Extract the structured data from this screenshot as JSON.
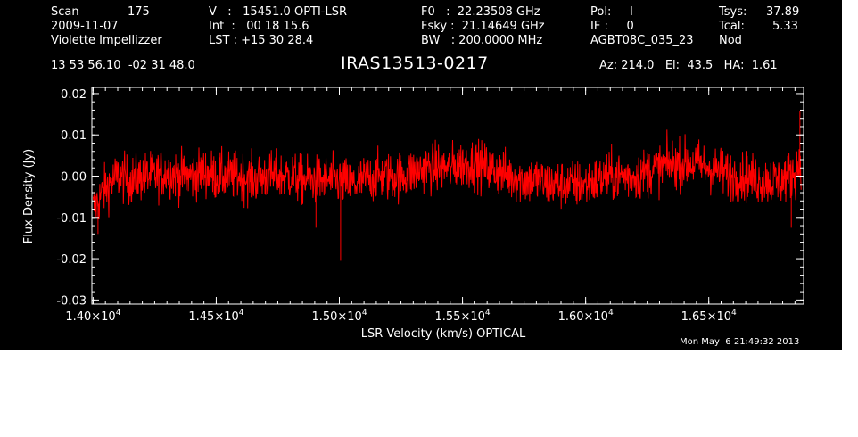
{
  "header": {
    "scan_label": "Scan",
    "scan_number": "175",
    "date": "2009-11-07",
    "observer": "Violette Impellizzer",
    "ra_dec": "13 53 56.10  -02 31 48.0",
    "v_line": "V   :   15451.0 OPTI-LSR",
    "int_line": "Int  :   00 18 15.6",
    "lst_line": "LST : +15 30 28.4",
    "f0_line": "F0   :  22.23508 GHz",
    "fsky_line": "Fsky :  21.14649 GHz",
    "bw_line": "BW   : 200.0000 MHz",
    "pol_line": "Pol:     I",
    "if_line": "IF :     0",
    "project": "AGBT08C_035_23",
    "tsys_label": "Tsys:",
    "tsys_value": "37.89",
    "tcal_label": "Tcal:",
    "tcal_value": "5.33",
    "mode": "Nod",
    "source": "IRAS13513-0217",
    "az_el_ha": "Az: 214.0   El:  43.5   HA:  1.61",
    "timestamp": "Mon May  6 21:49:32 2013"
  },
  "chart_data": {
    "type": "line",
    "title": "IRAS13513-0217",
    "xlabel": "LSR Velocity (km/s) OPTICAL",
    "ylabel": "Flux Density (Jy)",
    "xlim": [
      13995,
      16885
    ],
    "ylim": [
      -0.031,
      0.0215
    ],
    "x_ticks": [
      {
        "value": 14000,
        "mantissa": "1.40",
        "exp": "4"
      },
      {
        "value": 14500,
        "mantissa": "1.45",
        "exp": "4"
      },
      {
        "value": 15000,
        "mantissa": "1.50",
        "exp": "4"
      },
      {
        "value": 15500,
        "mantissa": "1.55",
        "exp": "4"
      },
      {
        "value": 16000,
        "mantissa": "1.60",
        "exp": "4"
      },
      {
        "value": 16500,
        "mantissa": "1.65",
        "exp": "4"
      }
    ],
    "y_ticks": [
      {
        "value": 0.02,
        "label": "0.02"
      },
      {
        "value": 0.01,
        "label": "0.01"
      },
      {
        "value": 0.0,
        "label": "0.00"
      },
      {
        "value": -0.01,
        "label": "-0.01"
      },
      {
        "value": -0.02,
        "label": "-0.02"
      },
      {
        "value": -0.03,
        "label": "-0.03"
      }
    ],
    "series": [
      {
        "color": "#ff0000",
        "x": [
          14000,
          14050,
          14100,
          14150,
          14200,
          14250,
          14300,
          14350,
          14400,
          14450,
          14500,
          14550,
          14600,
          14650,
          14700,
          14750,
          14800,
          14850,
          14900,
          14950,
          15000,
          15050,
          15100,
          15150,
          15200,
          15250,
          15300,
          15350,
          15400,
          15450,
          15500,
          15550,
          15600,
          15650,
          15700,
          15750,
          15800,
          15850,
          15900,
          15950,
          16000,
          16050,
          16100,
          16150,
          16200,
          16250,
          16300,
          16350,
          16400,
          16450,
          16500,
          16550,
          16600,
          16650,
          16700,
          16750,
          16800,
          16850,
          16875
        ],
        "y": [
          -0.008,
          -0.003,
          0.0,
          -0.001,
          0.0,
          0.0,
          0.001,
          0.0,
          0.0,
          0.001,
          0.0,
          0.0,
          0.0,
          -0.001,
          0.0,
          0.0,
          0.0,
          -0.001,
          -0.001,
          -0.001,
          -0.001,
          -0.002,
          -0.001,
          0.0,
          0.0,
          0.0,
          0.001,
          0.002,
          0.002,
          0.002,
          0.003,
          0.003,
          0.002,
          0.001,
          0.0,
          -0.001,
          -0.001,
          -0.002,
          -0.002,
          -0.002,
          -0.002,
          -0.001,
          0.0,
          0.0,
          0.0,
          0.001,
          0.002,
          0.003,
          0.003,
          0.003,
          0.002,
          0.001,
          0.0,
          0.0,
          -0.001,
          -0.001,
          -0.001,
          0.001,
          0.004
        ],
        "noise_rms": 0.003
      }
    ],
    "features": [
      {
        "x": 15005,
        "y": -0.0205
      },
      {
        "x": 14905,
        "y": -0.0125
      },
      {
        "x": 14020,
        "y": -0.014
      },
      {
        "x": 16870,
        "y": 0.0158
      },
      {
        "x": 16835,
        "y": -0.0125
      }
    ],
    "grid": false
  }
}
